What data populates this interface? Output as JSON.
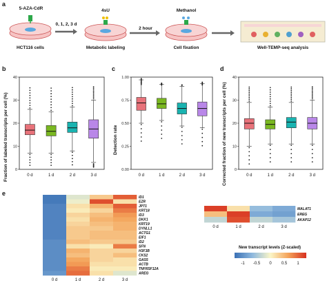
{
  "panel_a": {
    "label": "a",
    "steps": [
      {
        "top": "5-AZA-CdR",
        "bottom": "HCT116 cells"
      },
      {
        "top": "4sU",
        "bottom": "Metabolic labeling"
      },
      {
        "top": "Methanol",
        "bottom": "Cell fixation"
      },
      {
        "top": "",
        "bottom": "Well-TEMP-seq analysis"
      }
    ],
    "arrow1_label": "0, 1, 2, 3 d",
    "arrow2_label": "2 hour"
  },
  "colors": {
    "d0": "#e8727a",
    "d1": "#7ab821",
    "d2": "#19b3b0",
    "d3": "#b987e8"
  },
  "chart_data": [
    {
      "panel": "b",
      "type": "box",
      "ylabel": "Fraction of labeled transcripts per cell (%)",
      "categories": [
        "0 d",
        "1 d",
        "2 d",
        "3 d"
      ],
      "ylim": [
        0,
        40
      ],
      "yticks": [
        "0",
        "10",
        "20",
        "30",
        "40"
      ],
      "boxes": [
        {
          "min": 7,
          "q1": 15,
          "median": 17,
          "q3": 19.5,
          "max": 26
        },
        {
          "min": 7,
          "q1": 14.5,
          "median": 16.5,
          "q3": 19,
          "max": 25
        },
        {
          "min": 8,
          "q1": 16,
          "median": 18,
          "q3": 20.5,
          "max": 27
        },
        {
          "min": 3,
          "q1": 13.5,
          "median": 17.5,
          "q3": 21.5,
          "max": 30
        }
      ]
    },
    {
      "panel": "c",
      "type": "box",
      "ylabel": "Detection rate",
      "categories": [
        "0 d",
        "1 d",
        "2 d",
        "3 d"
      ],
      "ylim": [
        0,
        1.0
      ],
      "yticks": [
        "0.00",
        "0.25",
        "0.50",
        "0.75",
        "1.00"
      ],
      "boxes": [
        {
          "min": 0.5,
          "q1": 0.64,
          "median": 0.72,
          "q3": 0.78,
          "max": 0.97
        },
        {
          "min": 0.53,
          "q1": 0.66,
          "median": 0.71,
          "q3": 0.77,
          "max": 0.92
        },
        {
          "min": 0.47,
          "q1": 0.6,
          "median": 0.66,
          "q3": 0.72,
          "max": 0.9
        },
        {
          "min": 0.45,
          "q1": 0.58,
          "median": 0.66,
          "q3": 0.73,
          "max": 0.93
        }
      ]
    },
    {
      "panel": "d",
      "type": "box",
      "ylabel": "Corrected fraction of new transcripts per cell (%)",
      "categories": [
        "0 d",
        "1 d",
        "2 d",
        "3 d"
      ],
      "ylim": [
        0,
        40
      ],
      "yticks": [
        "0",
        "10",
        "20",
        "30",
        "40"
      ],
      "boxes": [
        {
          "min": 10,
          "q1": 17.5,
          "median": 20,
          "q3": 22,
          "max": 29
        },
        {
          "min": 11,
          "q1": 17.5,
          "median": 19.5,
          "q3": 21.5,
          "max": 27
        },
        {
          "min": 11,
          "q1": 18,
          "median": 20.5,
          "q3": 22.5,
          "max": 29
        },
        {
          "min": 11,
          "q1": 17.5,
          "median": 20,
          "q3": 22.5,
          "max": 30
        }
      ]
    },
    {
      "panel": "e",
      "type": "heatmap",
      "columns": [
        "0 d",
        "1 d",
        "2 d",
        "3 d"
      ],
      "rows": [
        "ID1",
        "EZR",
        "JPT1",
        "KRT18",
        "ID3",
        "DKK1",
        "KRT19",
        "DYNLL1",
        "ACTG1",
        "EIF1",
        "ID2",
        "SFN",
        "H3F3B",
        "CKS2",
        "GAS5",
        "ACTB",
        "TNFRSF12A",
        "AREG"
      ],
      "values": [
        [
          -1.4,
          -0.2,
          0.4,
          1.2
        ],
        [
          -1.4,
          -0.1,
          1.3,
          0.2
        ],
        [
          -1.3,
          0.2,
          0.6,
          1.2
        ],
        [
          -1.3,
          0.1,
          0.3,
          1.0
        ],
        [
          -1.3,
          0.3,
          0.5,
          0.8
        ],
        [
          -1.3,
          0.2,
          0.6,
          0.7
        ],
        [
          -1.3,
          0.3,
          0.5,
          0.6
        ],
        [
          -1.3,
          0.4,
          0.4,
          0.6
        ],
        [
          -1.3,
          0.4,
          0.5,
          0.5
        ],
        [
          -1.3,
          0.4,
          0.5,
          0.5
        ],
        [
          -1.2,
          0.5,
          0.4,
          0.4
        ],
        [
          -1.2,
          0.2,
          0.1,
          1.0
        ],
        [
          -1.2,
          0.6,
          0.3,
          0.3
        ],
        [
          -1.2,
          0.5,
          0.3,
          0.5
        ],
        [
          -1.2,
          0.7,
          0.3,
          0.2
        ],
        [
          -1.2,
          0.8,
          0.2,
          0.2
        ],
        [
          -1.2,
          1.0,
          0.1,
          0.1
        ],
        [
          -1.1,
          1.1,
          0.2,
          -0.2
        ]
      ]
    },
    {
      "panel": "e2",
      "type": "heatmap",
      "columns": [
        "0 d",
        "1 d",
        "2 d",
        "3 d"
      ],
      "rows": [
        "MALAT1",
        "EREG",
        "AKAP12"
      ],
      "values": [
        [
          1.4,
          0.2,
          -0.7,
          -0.9
        ],
        [
          0.5,
          1.4,
          -0.9,
          -1.0
        ],
        [
          -0.4,
          1.3,
          -0.4,
          -0.6
        ]
      ]
    }
  ],
  "legend": {
    "title": "New transcript levels (Z-scaled)",
    "ticks": [
      "-1",
      "-0.5",
      "0",
      "0.5",
      "1"
    ]
  },
  "panel_labels": {
    "b": "b",
    "c": "c",
    "d": "d",
    "e": "e"
  }
}
